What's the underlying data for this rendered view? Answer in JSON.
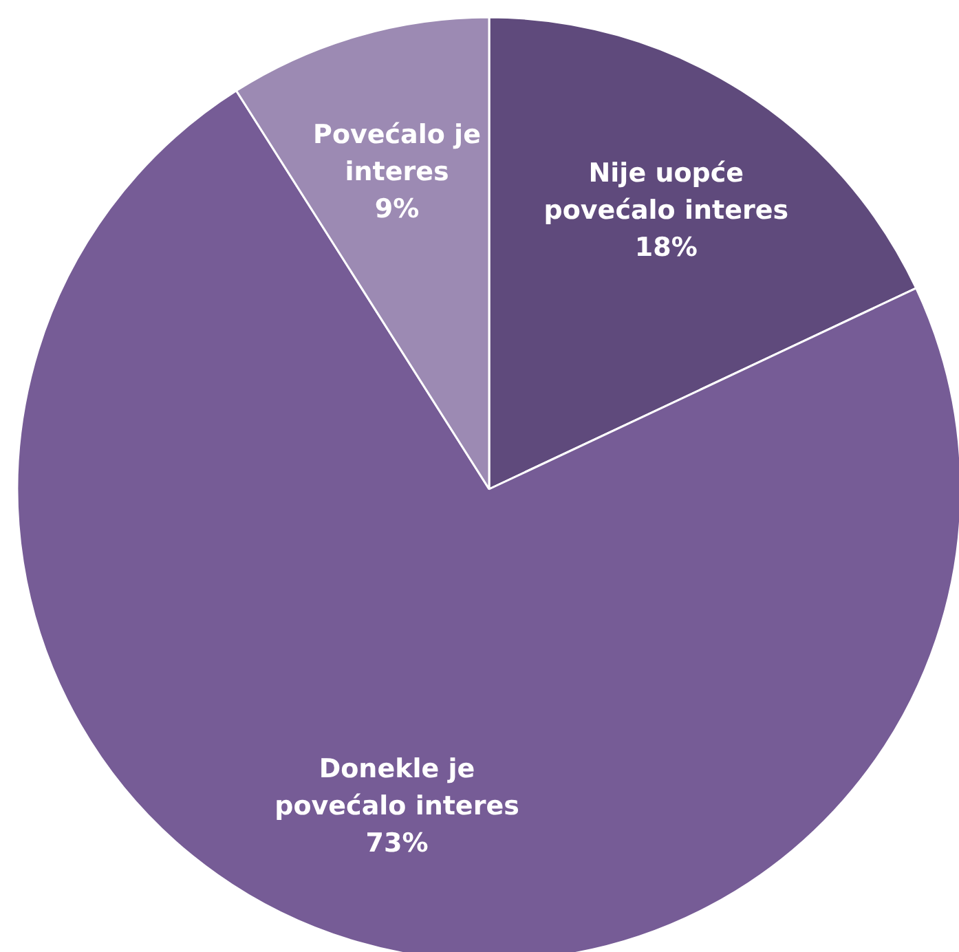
{
  "chart_data": {
    "type": "pie",
    "categories": [
      "Nije uopće povećalo interes",
      "Donekle je povećalo interes",
      "Povećalo je interes"
    ],
    "values": [
      18,
      73,
      9
    ],
    "colors": [
      "#5f4a7c",
      "#765c96",
      "#9c8ab3"
    ],
    "value_labels": [
      "18%",
      "73%",
      "9%"
    ]
  }
}
